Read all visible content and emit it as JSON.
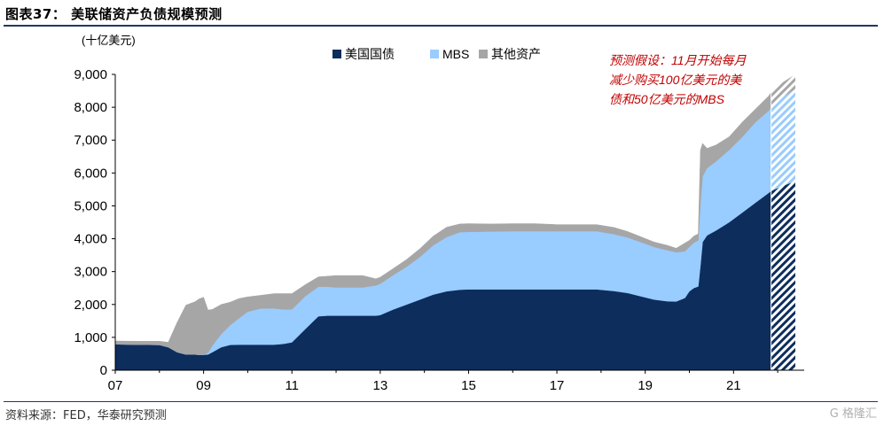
{
  "title": "图表37：  美联储资产负债规模预测",
  "source": "资料来源：FED，华泰研究预测",
  "watermark": "G 格隆汇",
  "chart_data": {
    "type": "area",
    "stacked": true,
    "unit_label": "(十亿美元)",
    "x": [
      2007.0,
      2007.5,
      2008.0,
      2008.2,
      2008.4,
      2008.6,
      2008.8,
      2008.9,
      2009.0,
      2009.1,
      2009.2,
      2009.4,
      2009.6,
      2009.8,
      2010.0,
      2010.3,
      2010.6,
      2010.8,
      2011.0,
      2011.3,
      2011.6,
      2011.8,
      2012.0,
      2012.3,
      2012.6,
      2012.9,
      2013.0,
      2013.3,
      2013.6,
      2013.9,
      2014.2,
      2014.5,
      2014.8,
      2015.0,
      2015.5,
      2016.0,
      2016.5,
      2017.0,
      2017.5,
      2017.9,
      2018.3,
      2018.6,
      2018.9,
      2019.2,
      2019.5,
      2019.7,
      2019.9,
      2020.0,
      2020.1,
      2020.2,
      2020.25,
      2020.3,
      2020.4,
      2020.6,
      2020.9,
      2021.2,
      2021.5,
      2021.8,
      2021.85,
      2022.1,
      2022.4
    ],
    "series": [
      {
        "name": "美国国债",
        "color": "#0d2d5c",
        "values": [
          790,
          780,
          770,
          700,
          550,
          480,
          480,
          470,
          470,
          480,
          550,
          700,
          770,
          780,
          780,
          780,
          780,
          800,
          850,
          1250,
          1640,
          1660,
          1660,
          1660,
          1660,
          1660,
          1680,
          1850,
          2000,
          2150,
          2300,
          2400,
          2450,
          2460,
          2460,
          2460,
          2460,
          2460,
          2460,
          2460,
          2410,
          2350,
          2250,
          2150,
          2100,
          2090,
          2200,
          2400,
          2500,
          2550,
          3200,
          3900,
          4100,
          4250,
          4500,
          4800,
          5100,
          5400,
          5450,
          5600,
          5750
        ]
      },
      {
        "name": "MBS",
        "color": "#99ccff",
        "values": [
          0,
          0,
          0,
          0,
          0,
          0,
          0,
          0,
          0,
          50,
          200,
          400,
          600,
          800,
          1000,
          1100,
          1100,
          1050,
          1000,
          1000,
          900,
          880,
          860,
          860,
          860,
          920,
          950,
          1050,
          1150,
          1300,
          1500,
          1650,
          1750,
          1750,
          1760,
          1770,
          1770,
          1770,
          1770,
          1770,
          1730,
          1690,
          1650,
          1600,
          1550,
          1500,
          1420,
          1350,
          1380,
          1400,
          1900,
          2000,
          2050,
          2100,
          2200,
          2300,
          2450,
          2500,
          2550,
          2700,
          2800
        ]
      },
      {
        "name": "其他资产",
        "color": "#a6a6a6",
        "values": [
          100,
          100,
          110,
          150,
          900,
          1500,
          1600,
          1700,
          1750,
          1300,
          1100,
          900,
          700,
          600,
          450,
          400,
          450,
          480,
          480,
          350,
          300,
          320,
          360,
          360,
          360,
          200,
          200,
          200,
          220,
          250,
          280,
          300,
          250,
          250,
          230,
          230,
          230,
          200,
          200,
          200,
          200,
          180,
          160,
          150,
          150,
          120,
          250,
          200,
          200,
          200,
          1600,
          1000,
          600,
          500,
          400,
          450,
          400,
          450,
          450,
          450,
          450
        ]
      }
    ],
    "forecast_start": 2021.85,
    "xlim": [
      2007,
      2022.6
    ],
    "ylim": [
      0,
      9000
    ],
    "yticks": [
      "0",
      "1,000",
      "2,000",
      "3,000",
      "4,000",
      "5,000",
      "6,000",
      "7,000",
      "8,000",
      "9,000"
    ],
    "xticks": [
      "07",
      "09",
      "11",
      "13",
      "15",
      "17",
      "19",
      "21"
    ],
    "annotation": [
      "预测假设：11月开始每月",
      "减少购买100亿美元的美",
      "债和50亿美元的MBS"
    ],
    "legend_position": "top-center"
  }
}
